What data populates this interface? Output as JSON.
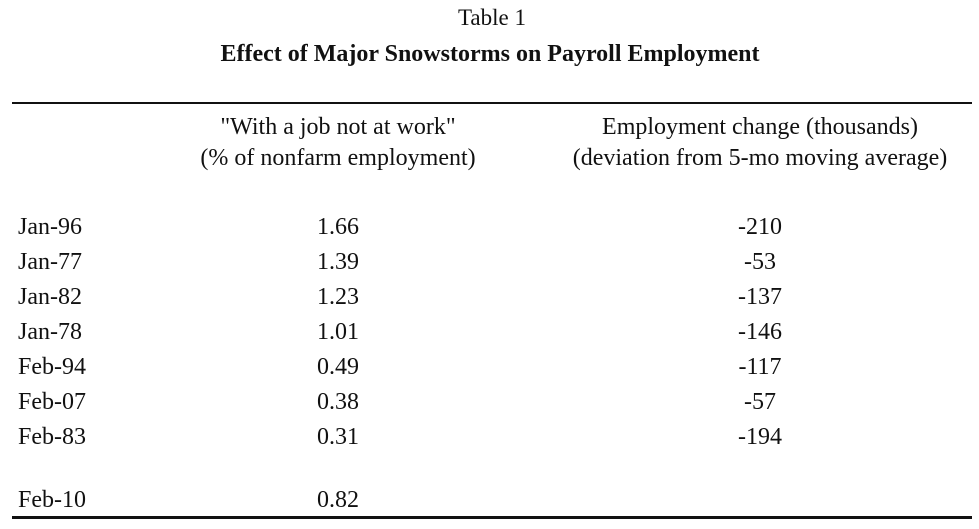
{
  "header": {
    "label": "Table 1",
    "title": "Effect of Major Snowstorms on Payroll Employment"
  },
  "table": {
    "columns": [
      [
        "\"With a job not at work\"",
        "(% of nonfarm employment)"
      ],
      [
        "Employment change (thousands)",
        "(deviation from 5-mo moving average)"
      ]
    ],
    "rows": [
      [
        "Jan-96",
        1.66,
        -210
      ],
      [
        "Jan-77",
        1.39,
        -53
      ],
      [
        "Jan-82",
        1.23,
        -137
      ],
      [
        "Jan-78",
        1.01,
        -146
      ],
      [
        "Feb-94",
        0.49,
        -117
      ],
      [
        "Feb-07",
        0.38,
        -57
      ],
      [
        "Feb-83",
        0.31,
        -194
      ],
      [
        "Feb-10",
        0.82
      ]
    ]
  }
}
